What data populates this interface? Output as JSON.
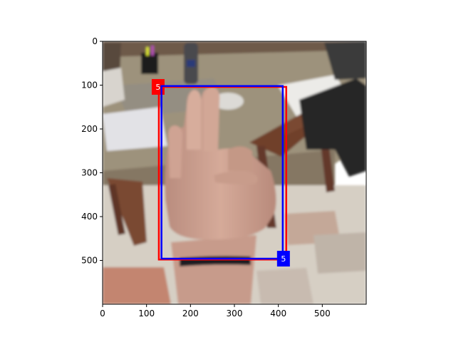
{
  "image_extent": {
    "width": 600,
    "height": 600
  },
  "axes": {
    "x_ticks": [
      0,
      100,
      200,
      300,
      400,
      500
    ],
    "y_ticks": [
      0,
      100,
      200,
      300,
      400,
      500
    ]
  },
  "scene": {
    "background": "a hand making a gesture in front of a table with papers, a bottle and a chair",
    "colors": {
      "table": "#9b8f78",
      "floor_light": "#d8d2c7",
      "floor_dark": "#c07e6a",
      "chair": "#6b3e2a",
      "skin": "#c99e8e",
      "jacket": "#2a2a2a"
    }
  },
  "boxes": [
    {
      "id": "red",
      "label": "5",
      "color": "#ff0000",
      "x1": 128,
      "y1": 104,
      "x2": 418,
      "y2": 498,
      "label_anchor": "top-left"
    },
    {
      "id": "blue",
      "label": "5",
      "color": "#0000ff",
      "x1": 134,
      "y1": 102,
      "x2": 410,
      "y2": 496,
      "label_anchor": "bottom-right"
    }
  ]
}
